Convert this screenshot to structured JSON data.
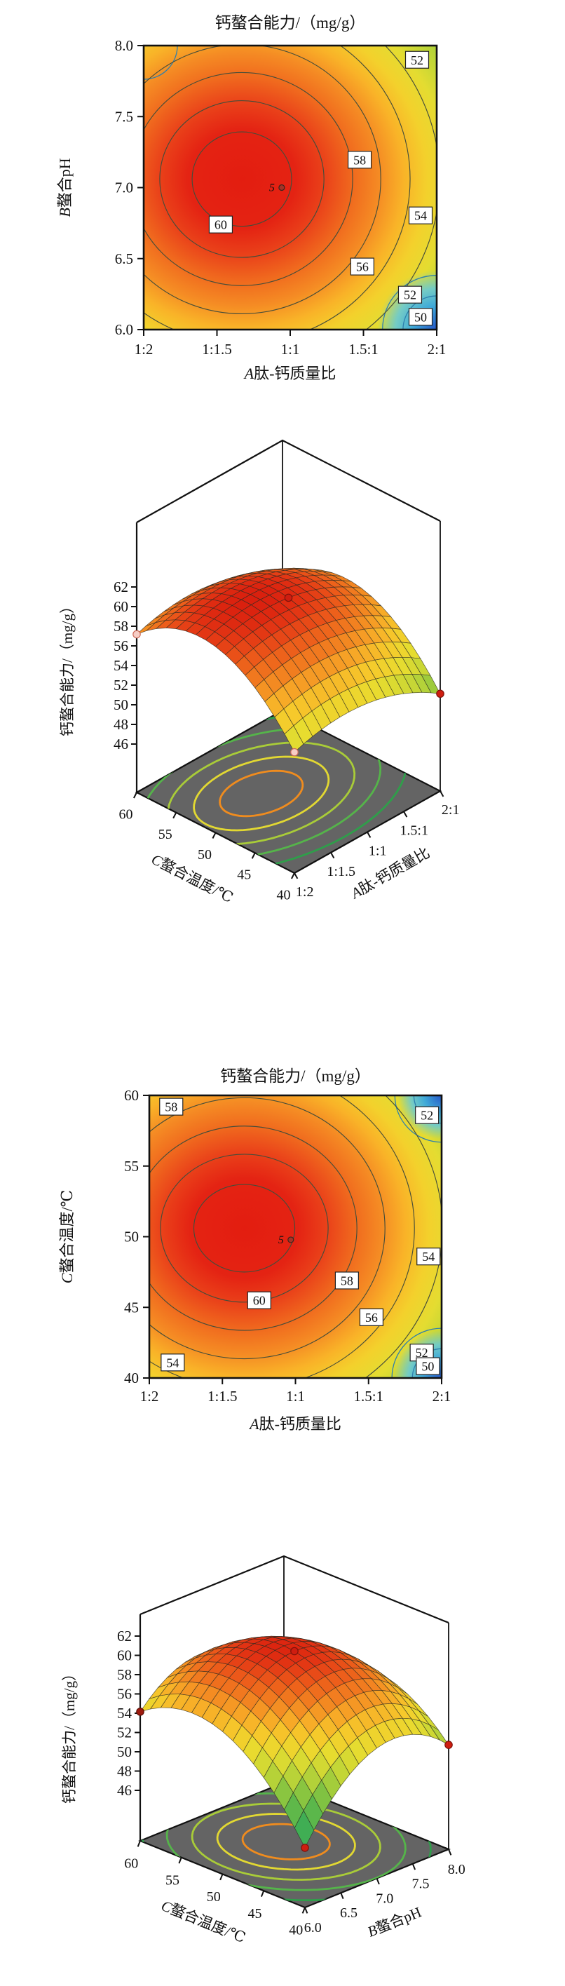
{
  "page": {
    "background": "#ffffff"
  },
  "colors": {
    "frame": "#111111",
    "contour_line": "#454d3a",
    "corner_arc_line": "#2d7fae",
    "label_box_fill": "#ffffff",
    "label_box_stroke": "#222222",
    "floor_fill": "#646464",
    "mesh_line": "#2a2a22",
    "red_dot_fill": "#cf1d10",
    "red_dot_stroke": "#7e120a",
    "pink_dot_fill": "#f6cdc5",
    "pink_dot_stroke": "#cf6a5a",
    "darkred_dot_fill": "#9e1a0e",
    "darkred_dot_stroke": "#5e0e06",
    "design_point_fill": "#a33327",
    "design_point_stroke": "#3a241d",
    "design_point_text": "#7a4a30"
  },
  "gradient_stops": [
    [
      0,
      "#e31d10"
    ],
    [
      0.16,
      "#e42313"
    ],
    [
      0.25,
      "#ea431a"
    ],
    [
      0.33,
      "#f06a1e"
    ],
    [
      0.41,
      "#f58c24"
    ],
    [
      0.48,
      "#f9b328"
    ],
    [
      0.55,
      "#f3d12c"
    ],
    [
      0.62,
      "#e4dc31"
    ],
    [
      0.69,
      "#bdd536"
    ],
    [
      0.77,
      "#92c83d"
    ],
    [
      0.85,
      "#57b24b"
    ],
    [
      0.93,
      "#37a453"
    ],
    [
      1,
      "#2e9e55"
    ]
  ],
  "cool_corner_stops": [
    [
      0,
      "#2456c8",
      1
    ],
    [
      0.3,
      "#3fa9d8",
      1
    ],
    [
      0.52,
      "#64c9de",
      0.85
    ],
    [
      0.75,
      "#64c9de",
      0
    ],
    [
      1,
      "#64c9de",
      0
    ]
  ],
  "z_ramp": [
    [
      44,
      "#5ecbc4"
    ],
    [
      46,
      "#56c6bb"
    ],
    [
      47.2,
      "#3fb07a"
    ],
    [
      48.5,
      "#3fae54"
    ],
    [
      50,
      "#5db84a"
    ],
    [
      51.5,
      "#8cc63f"
    ],
    [
      53,
      "#c3d636"
    ],
    [
      54.5,
      "#e8dc2f"
    ],
    [
      55.8,
      "#f6c92b"
    ],
    [
      57,
      "#f7a827"
    ],
    [
      58.2,
      "#f28020"
    ],
    [
      59.4,
      "#ec5a1a"
    ],
    [
      60.4,
      "#e33614"
    ],
    [
      61.2,
      "#da1f0e"
    ],
    [
      63,
      "#c91205"
    ]
  ],
  "chart_data": [
    {
      "id": "contour-1",
      "type": "heatmap",
      "title": "钙螯合能力/（mg/g）",
      "xlabel": {
        "var": "A",
        "rest": "肽-钙质量比"
      },
      "ylabel": {
        "var": "B",
        "rest": "螯合pH"
      },
      "x_ticks": [
        "1:2",
        "1:1.5",
        "1:1",
        "1.5:1",
        "2:1"
      ],
      "y_ticks": [
        "8.0",
        "7.5",
        "7.0",
        "6.5",
        "6.0"
      ],
      "y_range": [
        6.0,
        8.0
      ],
      "levels": [
        60,
        58,
        56,
        54,
        52,
        50
      ],
      "center": {
        "u": 0.335,
        "v": 0.47
      },
      "rings": [
        {
          "level": 60,
          "ru": 0.283,
          "rv": 0.268
        },
        {
          "level": 58,
          "ru": 0.467,
          "rv": 0.445
        },
        {
          "level": 56,
          "ru": 0.63,
          "rv": 0.605
        },
        {
          "level": 54,
          "ru": 0.79,
          "rv": 0.765
        },
        {
          "level": 52,
          "ru": 0.957,
          "rv": 0.935
        },
        {
          "level": 50,
          "ru": 1.125,
          "rv": 1.1
        }
      ],
      "contour_labels": [
        {
          "text": "52",
          "u": 0.933,
          "v": 0.05
        },
        {
          "text": "58",
          "u": 0.737,
          "v": 0.402
        },
        {
          "text": "54",
          "u": 0.945,
          "v": 0.598
        },
        {
          "text": "60",
          "u": 0.263,
          "v": 0.63
        },
        {
          "text": "56",
          "u": 0.746,
          "v": 0.778
        },
        {
          "text": "52",
          "u": 0.909,
          "v": 0.877
        },
        {
          "text": "50",
          "u": 0.945,
          "v": 0.955
        }
      ],
      "design_point": {
        "label": "5",
        "u": 0.471,
        "v": 0.5
      },
      "corner_features": [
        {
          "corner": "br",
          "cool_spot": true,
          "r": 0.27,
          "arcs": [
            0.115,
            0.185
          ]
        },
        {
          "corner": "tl",
          "cool_spot": false,
          "r": 0,
          "arcs": [
            0.115
          ]
        }
      ]
    },
    {
      "id": "surface-1",
      "type": "surface3d",
      "zlabel": "钙螯合能力/（mg/g）",
      "z_ticks": [
        "62",
        "60",
        "58",
        "56",
        "54",
        "52",
        "50",
        "48",
        "46"
      ],
      "z_range": [
        46,
        62
      ],
      "x_axis": {
        "label": {
          "var": "A",
          "rest": "肽-钙质量比"
        },
        "ticks": [
          "1:2",
          "1:1.5",
          "1:1",
          "1.5:1",
          "2:1"
        ]
      },
      "y_axis": {
        "label": {
          "var": "C",
          "rest": "螯合温度/℃"
        },
        "ticks": [
          "40",
          "45",
          "50",
          "55",
          "60"
        ]
      },
      "mesh_divisions": 16,
      "surface": {
        "peak_z": 61.2,
        "u0": 0.35,
        "v0": 0.6,
        "a": 8,
        "b": 19,
        "d": 0,
        "corner_values": {
          "front": 53.4,
          "left": 57.2,
          "right": 51.0,
          "back": 54.8
        }
      },
      "design_points": [
        {
          "u": 0.5,
          "v": 0.5,
          "type": "red",
          "note": "center-point"
        },
        {
          "u": 1,
          "v": 0,
          "type": "red",
          "note": "right-corner"
        },
        {
          "u": 0,
          "v": 1,
          "type": "pink",
          "note": "left-corner"
        },
        {
          "u": 0,
          "v": 0,
          "type": "pink",
          "note": "front-corner"
        }
      ],
      "floor_rings": {
        "cu": 0.4,
        "cv": 0.58,
        "base_radii": [
          0.16,
          0.26,
          0.36,
          0.46,
          0.56
        ],
        "ru_scale": 1.45,
        "rv_scale": 0.95,
        "colors": [
          "#f08c1e",
          "#e2d832",
          "#a9cc38",
          "#55b44a",
          "#2f9e4a"
        ]
      }
    },
    {
      "id": "contour-2",
      "type": "heatmap",
      "title": "钙螯合能力/（mg/g）",
      "xlabel": {
        "var": "A",
        "rest": "肽-钙质量比"
      },
      "ylabel": {
        "var": "C",
        "rest": "螯合温度/℃"
      },
      "x_ticks": [
        "1:2",
        "1:1.5",
        "1:1",
        "1.5:1",
        "2:1"
      ],
      "y_ticks": [
        "60",
        "55",
        "50",
        "45",
        "40"
      ],
      "y_range": [
        40,
        60
      ],
      "levels": [
        60,
        58,
        56,
        54,
        52,
        50
      ],
      "center": {
        "u": 0.325,
        "v": 0.47
      },
      "rings": [
        {
          "level": 60,
          "ru": 0.288,
          "rv": 0.25
        },
        {
          "level": 58,
          "ru": 0.478,
          "rv": 0.422
        },
        {
          "level": 56,
          "ru": 0.642,
          "rv": 0.583
        },
        {
          "level": 54,
          "ru": 0.802,
          "rv": 0.745
        },
        {
          "level": 52,
          "ru": 0.97,
          "rv": 0.915
        },
        {
          "level": 50,
          "ru": 1.13,
          "rv": 1.08
        }
      ],
      "contour_labels": [
        {
          "text": "58",
          "u": 0.075,
          "v": 0.04
        },
        {
          "text": "52",
          "u": 0.95,
          "v": 0.07
        },
        {
          "text": "54",
          "u": 0.955,
          "v": 0.57
        },
        {
          "text": "58",
          "u": 0.676,
          "v": 0.655
        },
        {
          "text": "60",
          "u": 0.376,
          "v": 0.725
        },
        {
          "text": "56",
          "u": 0.76,
          "v": 0.785
        },
        {
          "text": "54",
          "u": 0.08,
          "v": 0.945
        },
        {
          "text": "52",
          "u": 0.932,
          "v": 0.91
        },
        {
          "text": "50",
          "u": 0.953,
          "v": 0.958
        }
      ],
      "design_point": {
        "label": "5",
        "u": 0.484,
        "v": 0.511
      },
      "corner_features": [
        {
          "corner": "tr",
          "cool_spot": true,
          "r": 0.2,
          "arcs": [
            0.095,
            0.16
          ]
        },
        {
          "corner": "br",
          "cool_spot": true,
          "r": 0.22,
          "arcs": [
            0.1,
            0.17
          ]
        }
      ]
    },
    {
      "id": "surface-2",
      "type": "surface3d",
      "zlabel": "钙螯合能力/（mg/g）",
      "z_ticks": [
        "62",
        "60",
        "58",
        "56",
        "54",
        "52",
        "50",
        "48",
        "46"
      ],
      "z_range": [
        46,
        62
      ],
      "x_axis": {
        "label": {
          "var": "B",
          "rest": "螯合pH"
        },
        "ticks": [
          "6.0",
          "6.5",
          "7.0",
          "7.5",
          "8.0"
        ]
      },
      "y_axis": {
        "label": {
          "var": "C",
          "rest": "螯合温度/℃"
        },
        "ticks": [
          "40",
          "45",
          "50",
          "55",
          "60"
        ]
      },
      "mesh_divisions": 16,
      "surface": {
        "peak_z": 61.0,
        "u0": 0.5,
        "v0": 0.58,
        "a": 20,
        "b": 20,
        "d": -8,
        "corner_values": {
          "front": 47.0,
          "left": 54.2,
          "right": 51.6,
          "back": 49.5
        }
      },
      "design_points": [
        {
          "u": 0.5,
          "v": 0.5,
          "type": "red",
          "note": "center-point"
        },
        {
          "u": 0,
          "v": 0,
          "type": "red",
          "note": "front-corner"
        },
        {
          "u": 0,
          "v": 1,
          "type": "darkred",
          "note": "left-corner"
        },
        {
          "u": 1,
          "v": 0,
          "type": "red",
          "note": "right-corner"
        }
      ],
      "floor_rings": {
        "cu": 0.5,
        "cv": 0.55,
        "base_radii": [
          0.19,
          0.3,
          0.41,
          0.52,
          0.63
        ],
        "ru_scale": 1.05,
        "rv_scale": 1.05,
        "colors": [
          "#f08c1e",
          "#e2d832",
          "#a9cc38",
          "#55b44a",
          "#2f9e4a"
        ]
      }
    }
  ]
}
